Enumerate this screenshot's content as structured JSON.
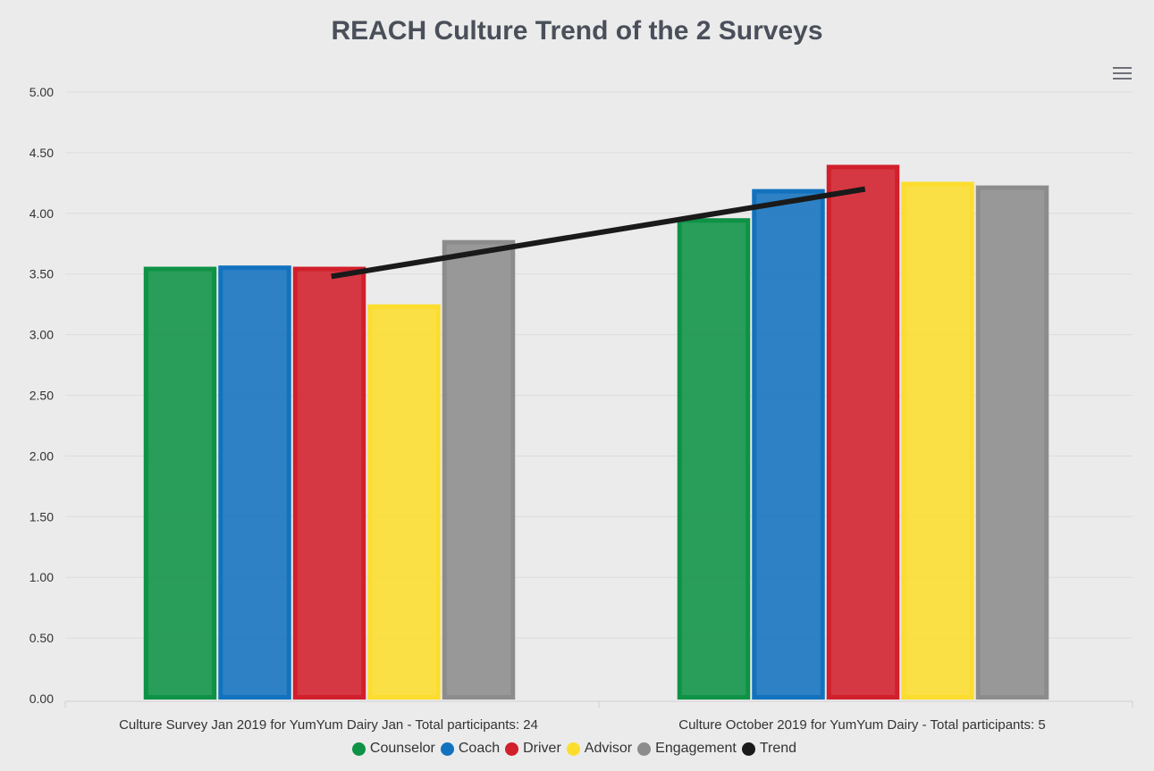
{
  "chart_data": {
    "type": "bar",
    "title": "REACH Culture Trend of the 2 Surveys",
    "categories": [
      "Culture Survey Jan 2019 for YumYum Dairy Jan - Total participants: 24",
      "Culture October 2019 for YumYum Dairy - Total participants: 5"
    ],
    "ylim": [
      0,
      5
    ],
    "yticks": [
      "0.00",
      "0.50",
      "1.00",
      "1.50",
      "2.00",
      "2.50",
      "3.00",
      "3.50",
      "4.00",
      "4.50",
      "5.00"
    ],
    "grid": true,
    "legend_position": "bottom-center",
    "series": [
      {
        "name": "Counselor",
        "type": "bar",
        "color": "#0e9245",
        "values": [
          3.56,
          3.96
        ]
      },
      {
        "name": "Coach",
        "type": "bar",
        "color": "#1272be",
        "values": [
          3.57,
          4.2
        ]
      },
      {
        "name": "Driver",
        "type": "bar",
        "color": "#d11f2b",
        "values": [
          3.56,
          4.4
        ]
      },
      {
        "name": "Advisor",
        "type": "bar",
        "color": "#fcdd2e",
        "values": [
          3.25,
          4.26
        ]
      },
      {
        "name": "Engagement",
        "type": "bar",
        "color": "#8c8c8c",
        "values": [
          3.78,
          4.23
        ]
      },
      {
        "name": "Trend",
        "type": "line",
        "color": "#1a1a1a",
        "values": [
          3.48,
          4.2
        ]
      }
    ]
  }
}
